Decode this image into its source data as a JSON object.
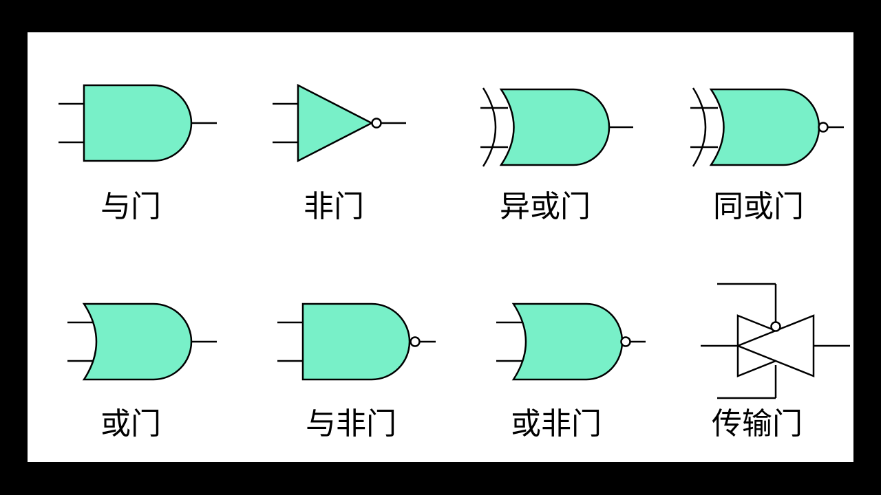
{
  "colors": {
    "gate_fill": "#78f0c8",
    "stroke": "#000000",
    "background": "#ffffff",
    "frame": "#000000"
  },
  "gates": [
    {
      "id": "and",
      "label": "与门"
    },
    {
      "id": "not",
      "label": "非门"
    },
    {
      "id": "xor",
      "label": "异或门"
    },
    {
      "id": "xnor",
      "label": "同或门"
    },
    {
      "id": "or",
      "label": "或门"
    },
    {
      "id": "nand",
      "label": "与非门"
    },
    {
      "id": "nor",
      "label": "或非门"
    },
    {
      "id": "transmission",
      "label": "传输门"
    }
  ]
}
